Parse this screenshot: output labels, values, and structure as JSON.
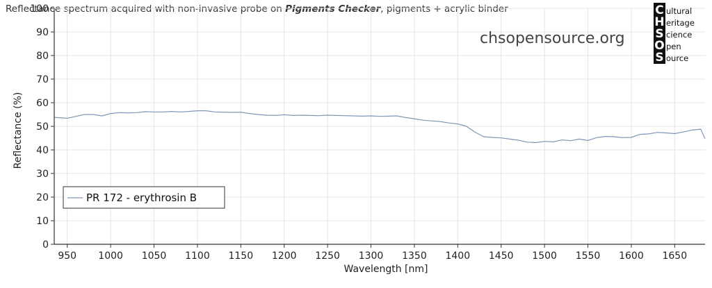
{
  "header": {
    "title_prefix": "Reflectance spectrum acquired with non-invasive probe on ",
    "title_emphasis": "Pigments Checker",
    "title_suffix": ", pigments + acrylic binder"
  },
  "watermark": "chsopensource.org",
  "logo": {
    "letters": [
      "C",
      "H",
      "S",
      "O",
      "S"
    ],
    "words": [
      "ultural",
      "eritage",
      "cience",
      "pen",
      "ource"
    ]
  },
  "colors": {
    "series": "#7f95b5",
    "grid": "#e4e4e4",
    "axis": "#333333"
  },
  "chart_data": {
    "type": "line",
    "title": "Reflectance spectrum acquired with non-invasive probe on Pigments Checker, pigments + acrylic binder",
    "xlabel": "Wavelength [nm]",
    "ylabel": "Reflectance (%)",
    "xlim": [
      935,
      1685
    ],
    "ylim": [
      0,
      100
    ],
    "xticks": [
      950,
      1000,
      1050,
      1100,
      1150,
      1200,
      1250,
      1300,
      1350,
      1400,
      1450,
      1500,
      1550,
      1600,
      1650
    ],
    "yticks": [
      0,
      10,
      20,
      30,
      40,
      50,
      60,
      70,
      80,
      90,
      100
    ],
    "grid": true,
    "legend_position": "lower-left",
    "series": [
      {
        "name": "PR 172 - erythrosin B",
        "x": [
          935,
          950,
          960,
          970,
          980,
          990,
          1000,
          1010,
          1020,
          1030,
          1040,
          1050,
          1060,
          1070,
          1080,
          1090,
          1100,
          1110,
          1120,
          1130,
          1140,
          1150,
          1160,
          1170,
          1180,
          1190,
          1200,
          1210,
          1220,
          1230,
          1240,
          1250,
          1260,
          1270,
          1280,
          1290,
          1300,
          1310,
          1320,
          1330,
          1340,
          1350,
          1360,
          1370,
          1380,
          1390,
          1400,
          1410,
          1420,
          1430,
          1440,
          1450,
          1460,
          1470,
          1480,
          1490,
          1500,
          1510,
          1520,
          1530,
          1540,
          1550,
          1560,
          1570,
          1580,
          1590,
          1600,
          1610,
          1620,
          1630,
          1640,
          1650,
          1660,
          1670,
          1680,
          1685
        ],
        "y": [
          53.8,
          53.4,
          54.2,
          55.0,
          55.0,
          54.4,
          55.4,
          55.8,
          55.7,
          55.8,
          56.2,
          56.1,
          56.1,
          56.3,
          56.1,
          56.3,
          56.6,
          56.6,
          56.1,
          56.0,
          55.9,
          56.0,
          55.4,
          55.0,
          54.7,
          54.6,
          54.9,
          54.6,
          54.7,
          54.6,
          54.5,
          54.7,
          54.6,
          54.5,
          54.4,
          54.3,
          54.4,
          54.2,
          54.3,
          54.4,
          53.7,
          53.2,
          52.6,
          52.3,
          52.0,
          51.4,
          51.0,
          50.0,
          47.5,
          45.6,
          45.3,
          45.1,
          44.6,
          44.1,
          43.3,
          43.1,
          43.6,
          43.4,
          44.2,
          43.9,
          44.6,
          44.0,
          45.2,
          45.7,
          45.6,
          45.2,
          45.3,
          46.6,
          46.8,
          47.4,
          47.2,
          46.9,
          47.6,
          48.4,
          48.8,
          44.8
        ]
      }
    ]
  }
}
